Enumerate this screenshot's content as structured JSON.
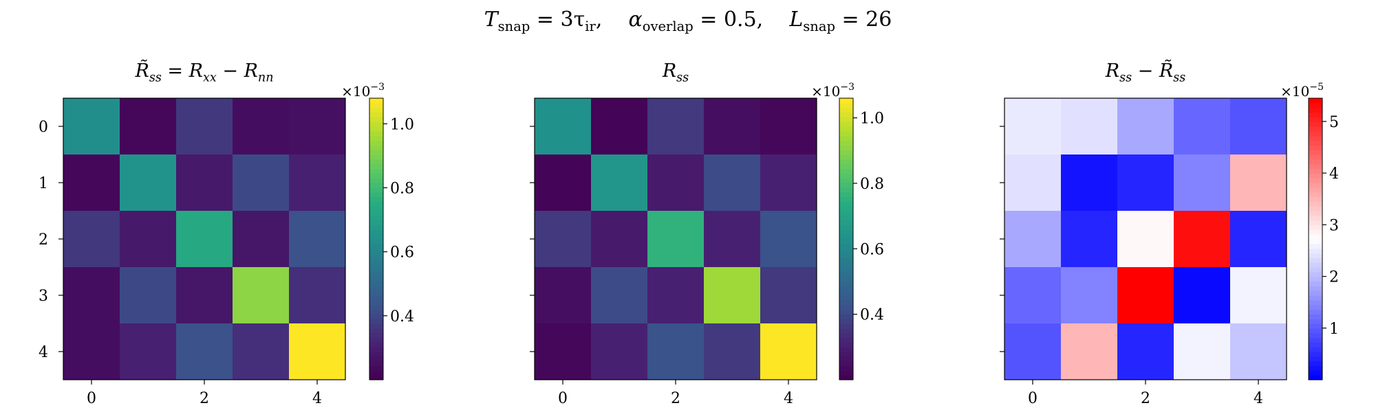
{
  "figure": {
    "suptitle_parts": {
      "t": "T",
      "t_sub": "snap",
      "t_val": " = 3τ",
      "tau_sub": "ir",
      "a": "α",
      "a_sub": "overlap",
      "a_val": " = 0.5,",
      "l": "L",
      "l_sub": "snap",
      "l_val": " = 26"
    }
  },
  "chart_data": [
    {
      "type": "heatmap",
      "title": "R̃ss = Rxx − Rnn",
      "title_parts": {
        "a": "R̃",
        "a_sub": "ss",
        "b": " = ",
        "c": "R",
        "c_sub": "xx",
        "d": " − ",
        "e": "R",
        "e_sub": "nn"
      },
      "xticks": [
        0,
        2,
        4
      ],
      "yticks": [
        0,
        1,
        2,
        3,
        4
      ],
      "colormap": "viridis",
      "vmin": 0.2,
      "vmax": 1.08,
      "colorbar_ticks": [
        0.4,
        0.6,
        0.8,
        1.0
      ],
      "colorbar_ticklabels": [
        "0.4",
        "0.6",
        "0.8",
        "1.0"
      ],
      "colorbar_scale_base": "×10",
      "colorbar_scale_exp": "−3",
      "values": [
        [
          0.63,
          0.22,
          0.36,
          0.24,
          0.25
        ],
        [
          0.22,
          0.65,
          0.28,
          0.4,
          0.3
        ],
        [
          0.36,
          0.28,
          0.74,
          0.27,
          0.42
        ],
        [
          0.24,
          0.4,
          0.27,
          0.93,
          0.34
        ],
        [
          0.24,
          0.3,
          0.42,
          0.34,
          1.08
        ]
      ]
    },
    {
      "type": "heatmap",
      "title": "Rss",
      "title_parts": {
        "a": "R",
        "a_sub": "ss"
      },
      "xticks": [
        0,
        2,
        4
      ],
      "yticks": [],
      "colormap": "viridis",
      "vmin": 0.2,
      "vmax": 1.06,
      "colorbar_ticks": [
        0.4,
        0.6,
        0.8,
        1.0
      ],
      "colorbar_ticklabels": [
        "0.4",
        "0.6",
        "0.8",
        "1.0"
      ],
      "colorbar_scale_base": "×10",
      "colorbar_scale_exp": "−3",
      "values": [
        [
          0.63,
          0.21,
          0.36,
          0.24,
          0.22
        ],
        [
          0.21,
          0.65,
          0.28,
          0.4,
          0.3
        ],
        [
          0.36,
          0.28,
          0.76,
          0.3,
          0.42
        ],
        [
          0.24,
          0.4,
          0.3,
          0.94,
          0.36
        ],
        [
          0.22,
          0.3,
          0.42,
          0.36,
          1.06
        ]
      ]
    },
    {
      "type": "heatmap",
      "title": "Rss − R̃ss",
      "title_parts": {
        "a": "R",
        "a_sub": "ss",
        "b": " − ",
        "c": "R̃",
        "c_sub": "ss"
      },
      "xticks": [
        0,
        2,
        4
      ],
      "yticks": [],
      "colormap": "bwr",
      "vmin": 0.0,
      "vmax": 5.45,
      "colorbar_ticks": [
        1,
        2,
        3,
        4,
        5
      ],
      "colorbar_ticklabels": [
        "1",
        "2",
        "3",
        "4",
        "5"
      ],
      "colorbar_scale_base": "×10",
      "colorbar_scale_exp": "−5",
      "values": [
        [
          2.5,
          2.4,
          1.8,
          1.1,
          0.9
        ],
        [
          2.4,
          0.2,
          0.4,
          1.4,
          3.5
        ],
        [
          1.8,
          0.4,
          2.8,
          5.3,
          0.4
        ],
        [
          1.1,
          1.4,
          5.45,
          0.1,
          2.6
        ],
        [
          0.9,
          3.5,
          0.4,
          2.6,
          2.1
        ]
      ]
    }
  ]
}
